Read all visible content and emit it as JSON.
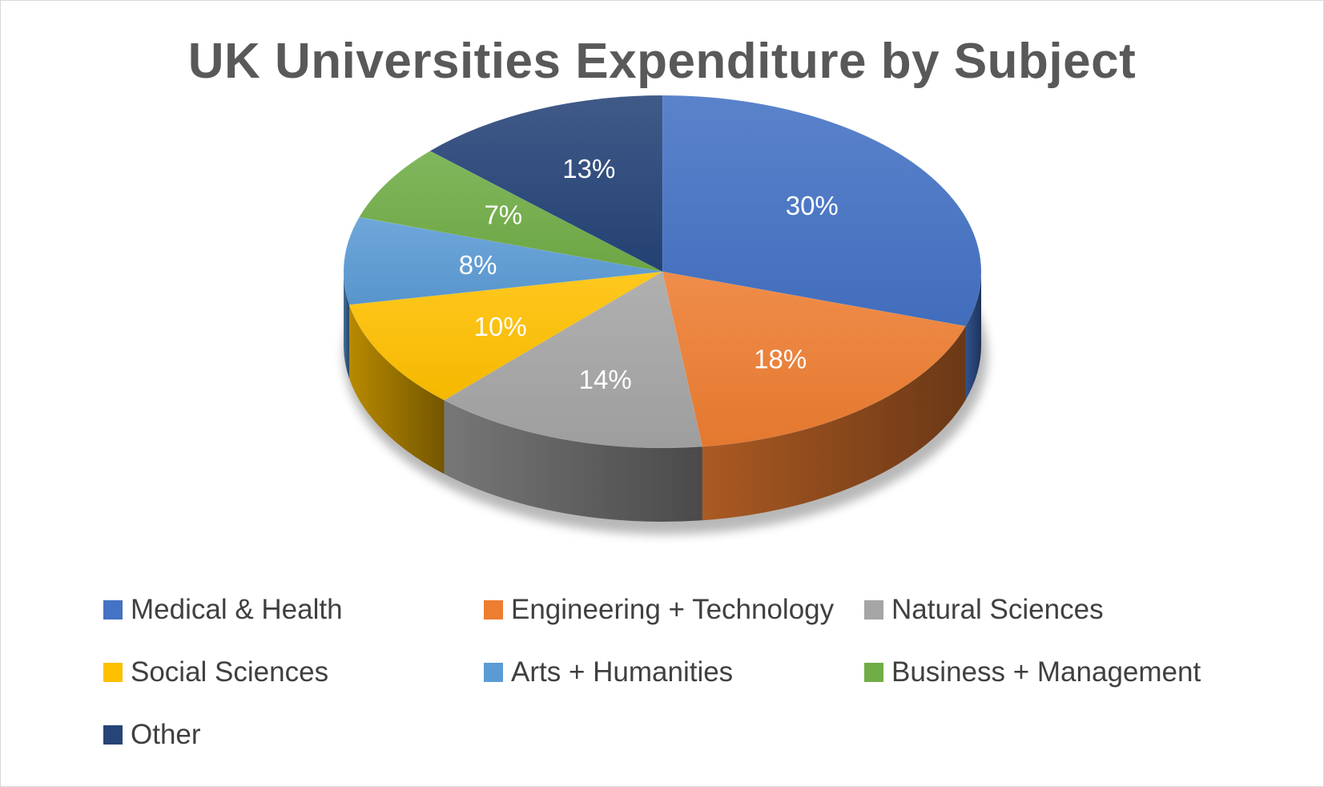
{
  "chart_data": {
    "type": "pie",
    "style": "3d",
    "title": "UK Universities Expenditure by Subject",
    "legend_position": "bottom",
    "slices": [
      {
        "name": "Medical & Health",
        "value": 30,
        "label": "30%",
        "color": "#4472c4"
      },
      {
        "name": "Engineering + Technology",
        "value": 18,
        "label": "18%",
        "color": "#ed7d31"
      },
      {
        "name": "Natural Sciences",
        "value": 14,
        "label": "14%",
        "color": "#a5a5a5"
      },
      {
        "name": "Social Sciences",
        "value": 10,
        "label": "10%",
        "color": "#ffc000"
      },
      {
        "name": "Arts + Humanities",
        "value": 8,
        "label": "8%",
        "color": "#5b9bd5"
      },
      {
        "name": "Business + Management",
        "value": 7,
        "label": "7%",
        "color": "#70ad47"
      },
      {
        "name": "Other",
        "value": 13,
        "label": "13%",
        "color": "#264478"
      }
    ]
  }
}
